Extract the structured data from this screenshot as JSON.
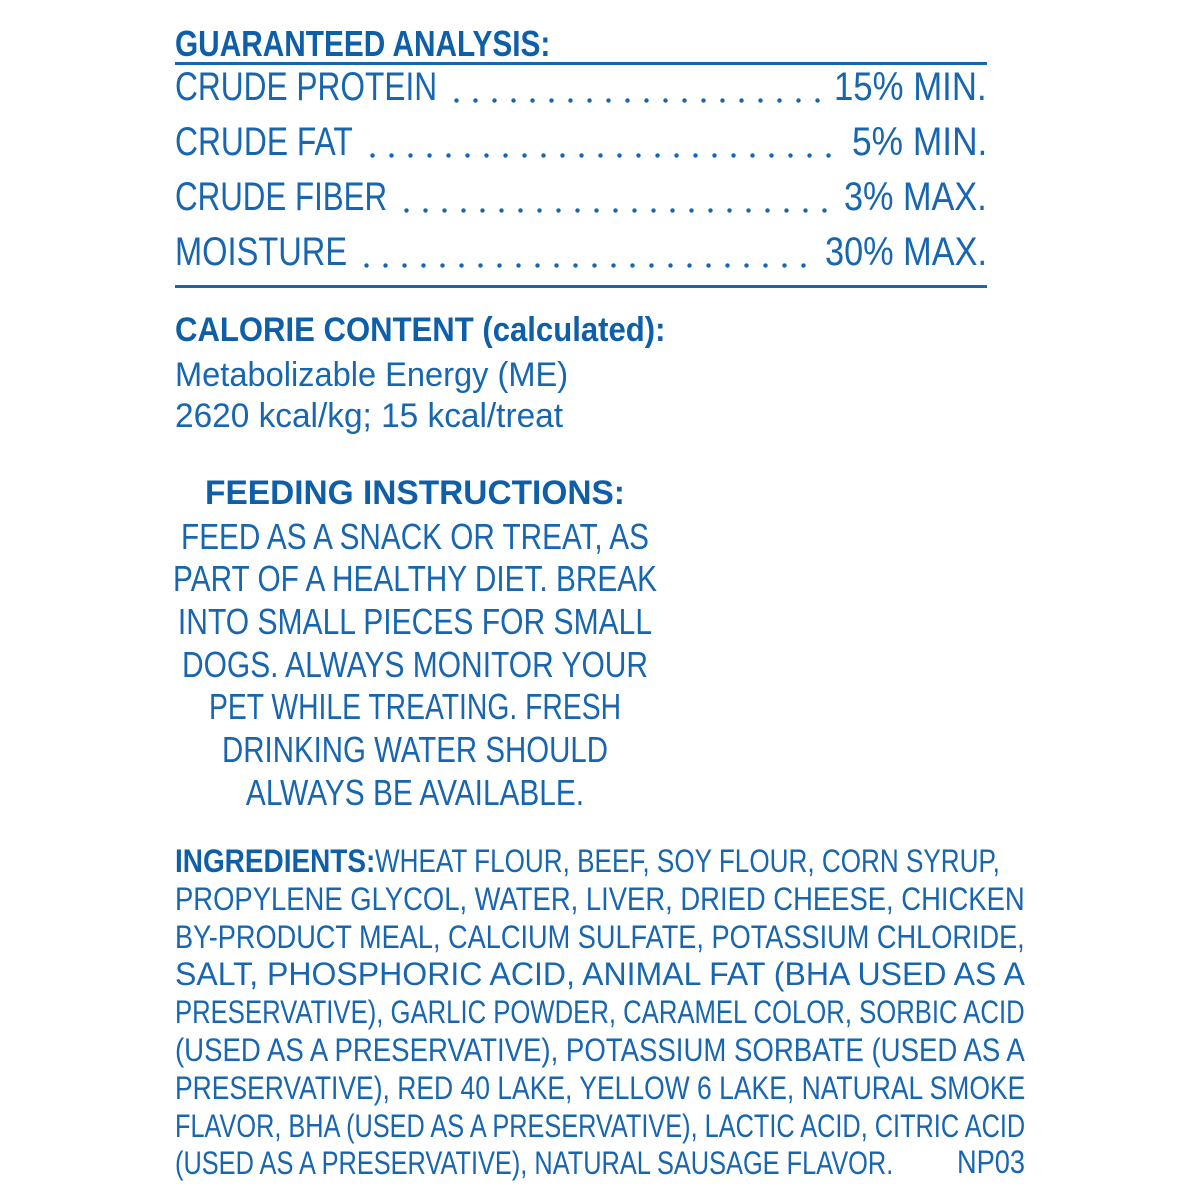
{
  "guaranteed_analysis": {
    "heading": "GUARANTEED ANALYSIS:",
    "rows": [
      {
        "label": "CRUDE PROTEIN",
        "value": "15% MIN."
      },
      {
        "label": "CRUDE FAT",
        "value": "5% MIN."
      },
      {
        "label": "CRUDE FIBER",
        "value": "3% MAX."
      },
      {
        "label": "MOISTURE",
        "value": "30% MAX."
      }
    ]
  },
  "calorie_content": {
    "heading": "CALORIE CONTENT (calculated):",
    "lines": [
      "Metabolizable Energy (ME)",
      "2620 kcal/kg; 15 kcal/treat"
    ]
  },
  "feeding_instructions": {
    "heading": "FEEDING INSTRUCTIONS:",
    "lines": [
      "FEED AS A SNACK OR TREAT, AS",
      "PART OF A HEALTHY DIET. BREAK",
      "INTO SMALL PIECES FOR SMALL",
      "DOGS. ALWAYS MONITOR YOUR",
      "PET WHILE TREATING. FRESH",
      "DRINKING WATER SHOULD",
      "ALWAYS BE AVAILABLE."
    ]
  },
  "ingredients": {
    "heading": "INGREDIENTS:",
    "lines": [
      "WHEAT FLOUR, BEEF, SOY FLOUR, CORN SYRUP,",
      "PROPYLENE GLYCOL, WATER, LIVER, DRIED CHEESE, CHICKEN",
      "BY-PRODUCT MEAL, CALCIUM SULFATE, POTASSIUM CHLORIDE,",
      "SALT, PHOSPHORIC ACID, ANIMAL FAT (BHA USED AS A",
      "PRESERVATIVE), GARLIC POWDER, CARAMEL COLOR, SORBIC ACID",
      "(USED AS A PRESERVATIVE), POTASSIUM SORBATE (USED AS A",
      "PRESERVATIVE), RED 40 LAKE, YELLOW 6 LAKE, NATURAL SMOKE",
      "FLAVOR, BHA (USED AS A PRESERVATIVE), LACTIC ACID, CITRIC ACID",
      "(USED AS A PRESERVATIVE), NATURAL SAUSAGE FLAVOR."
    ],
    "code": "NP03"
  },
  "colors": {
    "text": "#1866b0",
    "heading": "#0f5ea8"
  }
}
